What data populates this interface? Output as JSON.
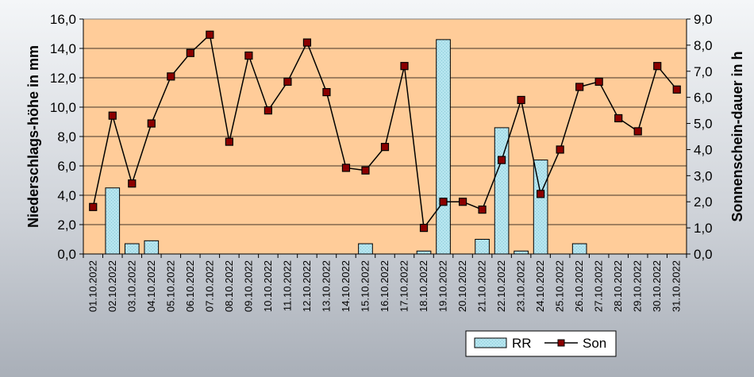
{
  "chart_data": {
    "type": "bar",
    "categories": [
      "01.10.2022",
      "02.10.2022",
      "03.10.2022",
      "04.10.2022",
      "05.10.2022",
      "06.10.2022",
      "07.10.2022",
      "08.10.2022",
      "09.10.2022",
      "10.10.2022",
      "11.10.2022",
      "12.10.2022",
      "13.10.2022",
      "14.10.2022",
      "15.10.2022",
      "16.10.2022",
      "17.10.2022",
      "18.10.2022",
      "19.10.2022",
      "20.10.2022",
      "21.10.2022",
      "22.10.2022",
      "23.10.2022",
      "24.10.2022",
      "25.10.2022",
      "26.10.2022",
      "27.10.2022",
      "28.10.2022",
      "29.10.2022",
      "30.10.2022",
      "31.10.2022"
    ],
    "series": [
      {
        "name": "RR",
        "type": "bar",
        "axis": "left",
        "values": [
          0,
          4.5,
          0.7,
          0.9,
          0,
          0,
          0,
          0,
          0,
          0,
          0,
          0,
          0,
          0,
          0.7,
          0,
          0,
          0.2,
          14.6,
          0,
          1.0,
          8.6,
          0.2,
          6.4,
          0,
          0.7,
          0,
          0,
          0,
          0,
          0
        ]
      },
      {
        "name": "Son",
        "type": "line",
        "axis": "right",
        "values": [
          1.8,
          5.3,
          2.7,
          5.0,
          6.8,
          7.7,
          8.4,
          4.3,
          7.6,
          5.5,
          6.6,
          8.1,
          6.2,
          3.3,
          3.2,
          4.1,
          7.2,
          1.0,
          2.0,
          2.0,
          1.7,
          3.6,
          5.9,
          2.3,
          4.0,
          6.4,
          6.6,
          5.2,
          4.7,
          7.2,
          6.3
        ]
      }
    ],
    "ylabel": "Niederschlags-höhe in mm",
    "y2label": "Sonnenschein-dauer in h",
    "ylim": [
      0,
      16
    ],
    "y2lim": [
      0,
      9
    ],
    "yticks": [
      "0,0",
      "2,0",
      "4,0",
      "6,0",
      "8,0",
      "10,0",
      "12,0",
      "14,0",
      "16,0"
    ],
    "y2ticks": [
      "0,0",
      "1,0",
      "2,0",
      "3,0",
      "4,0",
      "5,0",
      "6,0",
      "7,0",
      "8,0",
      "9,0"
    ],
    "grid": true,
    "legend": {
      "placement": "bottom-right",
      "entries": [
        "RR",
        "Son"
      ]
    },
    "colors": {
      "plot_background": "#FFCC99",
      "bar_fill": "#AEE3EE",
      "bar_stroke": "#000000",
      "line": "#000000",
      "marker_fill": "#8B0000",
      "marker_stroke": "#000000",
      "background_top": "#F4F6F8",
      "background_bottom": "#A9AFB8"
    }
  }
}
